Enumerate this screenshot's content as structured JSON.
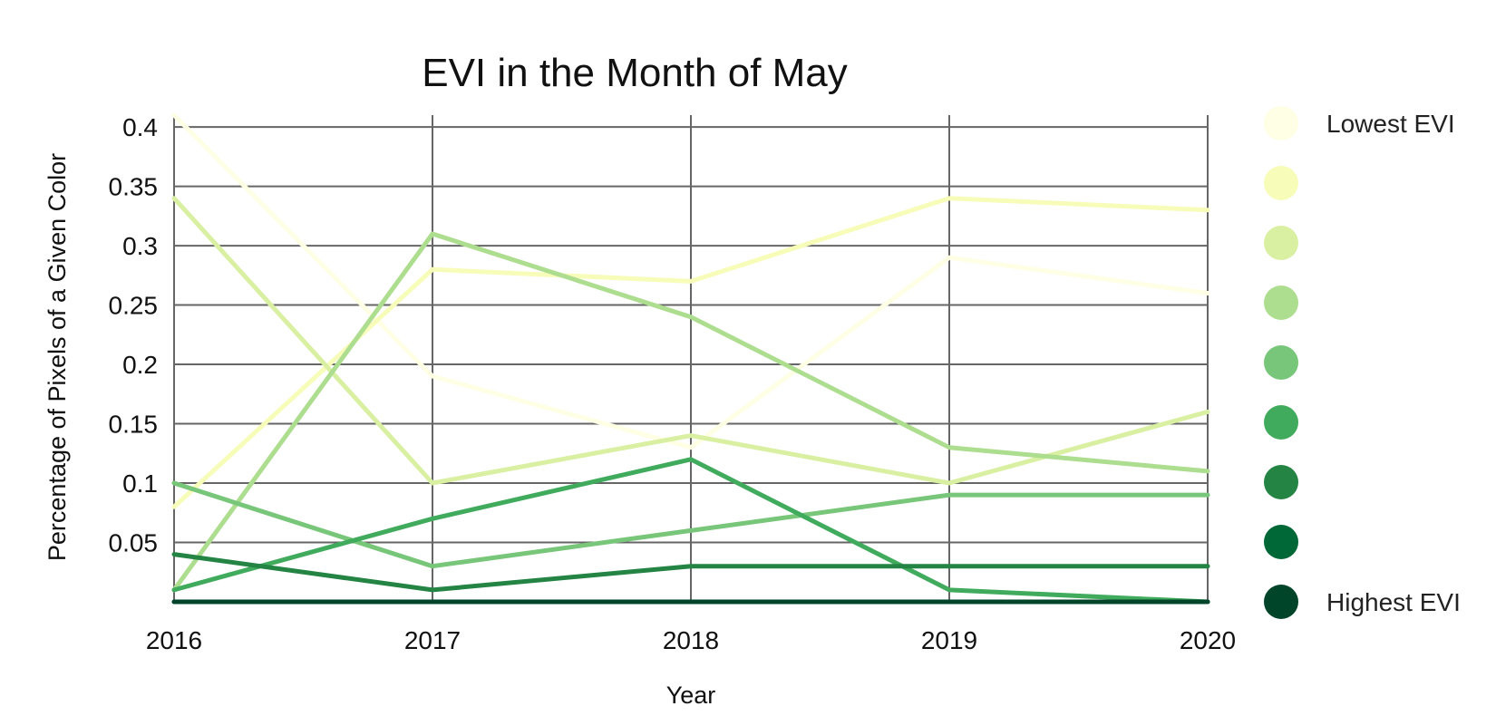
{
  "chart_data": {
    "type": "line",
    "title": "EVI in the Month of May",
    "xlabel": "Year",
    "ylabel": "Percentage of Pixels of a Given Color",
    "x": [
      "2016",
      "2017",
      "2018",
      "2019",
      "2020"
    ],
    "yticks": [
      "0.05",
      "0.1",
      "0.15",
      "0.2",
      "0.25",
      "0.3",
      "0.35",
      "0.4"
    ],
    "ylim": [
      0,
      0.41
    ],
    "grid": true,
    "legend_position": "right",
    "series": [
      {
        "color": "#ffffe5",
        "values": [
          0.41,
          0.19,
          0.13,
          0.29,
          0.26
        ]
      },
      {
        "color": "#f7fcb9",
        "values": [
          0.08,
          0.28,
          0.27,
          0.34,
          0.33
        ]
      },
      {
        "color": "#d9f0a3",
        "values": [
          0.34,
          0.1,
          0.14,
          0.1,
          0.16
        ]
      },
      {
        "color": "#addd8e",
        "values": [
          0.01,
          0.31,
          0.24,
          0.13,
          0.11
        ]
      },
      {
        "color": "#78c679",
        "values": [
          0.1,
          0.03,
          0.06,
          0.09,
          0.09
        ]
      },
      {
        "color": "#41ab5d",
        "values": [
          0.01,
          0.07,
          0.12,
          0.01,
          0.0
        ]
      },
      {
        "color": "#238443",
        "values": [
          0.04,
          0.01,
          0.03,
          0.03,
          0.03
        ]
      },
      {
        "color": "#006837",
        "values": [
          0.0,
          0.0,
          0.0,
          0.0,
          0.0
        ]
      },
      {
        "color": "#004529",
        "values": [
          0.0,
          0.0,
          0.0,
          0.0,
          0.0
        ]
      }
    ],
    "legend": [
      {
        "label": "Lowest EVI",
        "color": "#ffffe5"
      },
      {
        "label": "",
        "color": "#f7fcb9"
      },
      {
        "label": "",
        "color": "#d9f0a3"
      },
      {
        "label": "",
        "color": "#addd8e"
      },
      {
        "label": "",
        "color": "#78c679"
      },
      {
        "label": "",
        "color": "#41ab5d"
      },
      {
        "label": "",
        "color": "#238443"
      },
      {
        "label": "",
        "color": "#006837"
      },
      {
        "label": "Highest EVI",
        "color": "#004529"
      }
    ]
  }
}
